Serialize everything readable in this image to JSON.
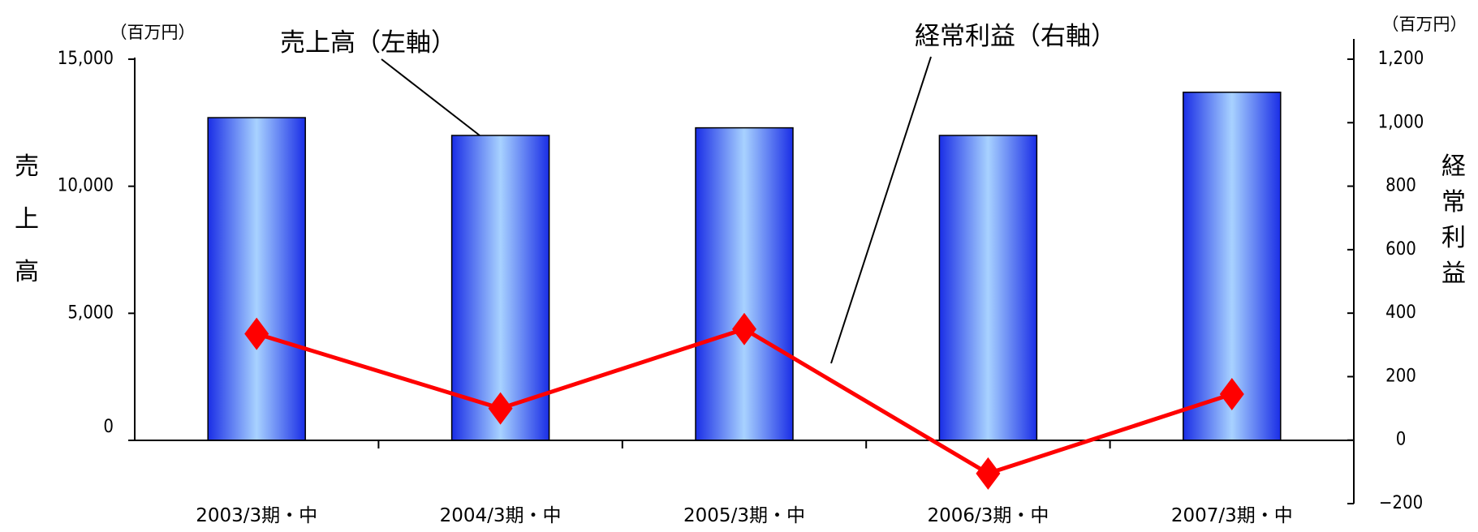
{
  "chart_data": {
    "type": "bar+line",
    "categories": [
      "2003/3期・中",
      "2004/3期・中",
      "2005/3期・中",
      "2006/3期・中",
      "2007/3期・中"
    ],
    "series": [
      {
        "name": "売上高（左軸）",
        "type": "bar",
        "axis": "left",
        "values": [
          12700,
          12000,
          12300,
          12000,
          13700
        ]
      },
      {
        "name": "経常利益（右軸）",
        "type": "line",
        "axis": "right",
        "values": [
          335,
          100,
          350,
          -105,
          145
        ]
      }
    ],
    "y_left": {
      "label": "売上高",
      "unit": "（百万円）",
      "range": [
        0,
        15000
      ],
      "ticks": [
        0,
        5000,
        10000,
        15000
      ],
      "tick_labels": [
        "0",
        "5,000",
        "10,000",
        "15,000"
      ]
    },
    "y_right": {
      "label": "経常利益",
      "unit": "（百万円）",
      "range": [
        -200,
        1200
      ],
      "ticks": [
        -200,
        0,
        200,
        400,
        600,
        800,
        1000,
        1200
      ],
      "tick_labels": [
        "−200",
        "0",
        "200",
        "400",
        "600",
        "800",
        "1,000",
        "1,200"
      ]
    },
    "annotations": [
      "売上高（左軸）",
      "経常利益（右軸）"
    ],
    "grid": false,
    "colors": {
      "bar_dark": "#1a2ee6",
      "bar_light": "#a8d2ff",
      "line": "#ff0000",
      "axis": "#000000"
    }
  }
}
